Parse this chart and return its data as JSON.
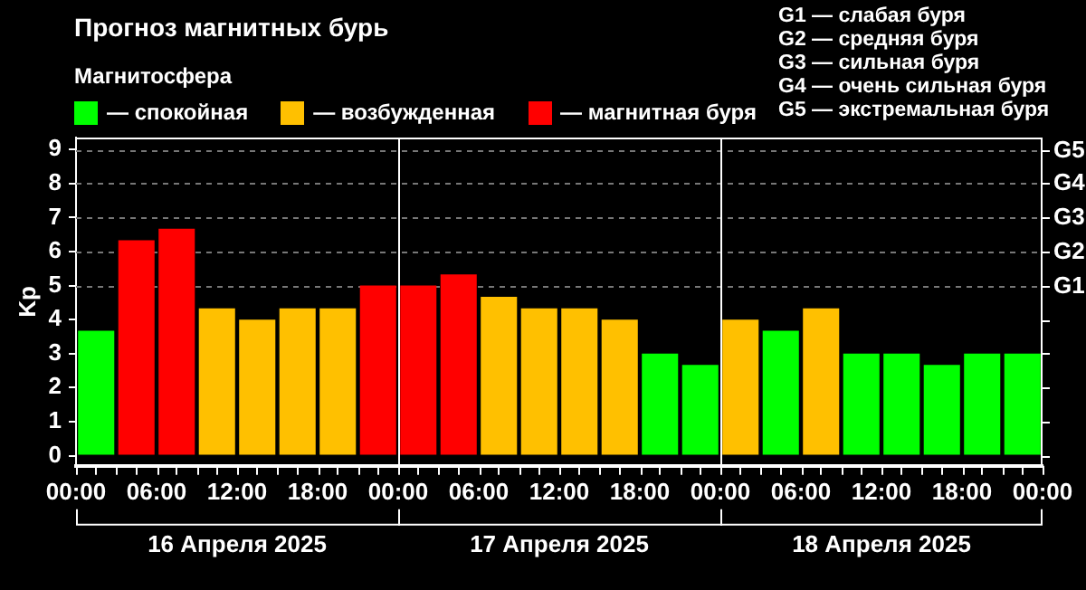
{
  "chart_data": {
    "type": "bar",
    "title": "Прогноз магнитных бурь",
    "ylabel": "Kp",
    "legend_title": "Магнитосфера",
    "legend": "top left",
    "x": [
      "2025-04-16T01:30",
      "2025-04-16T04:30",
      "2025-04-16T07:30",
      "2025-04-16T10:30",
      "2025-04-16T13:30",
      "2025-04-16T16:30",
      "2025-04-16T19:30",
      "2025-04-16T22:30",
      "2025-04-17T01:30",
      "2025-04-17T04:30",
      "2025-04-17T07:30",
      "2025-04-17T10:30",
      "2025-04-17T13:30",
      "2025-04-17T16:30",
      "2025-04-17T19:30",
      "2025-04-17T22:30",
      "2025-04-18T01:30",
      "2025-04-18T04:30",
      "2025-04-18T07:30",
      "2025-04-18T10:30",
      "2025-04-18T13:30",
      "2025-04-18T16:30",
      "2025-04-18T19:30",
      "2025-04-18T22:30"
    ],
    "series": [
      {
        "name": "— спокойная",
        "color": "#00ff00",
        "values": [
          3.67,
          null,
          null,
          null,
          null,
          null,
          null,
          null,
          null,
          null,
          null,
          null,
          null,
          null,
          3,
          2.67,
          null,
          3.67,
          null,
          3,
          3,
          2.67,
          3,
          3
        ]
      },
      {
        "name": "— возбужденная",
        "color": "#ffc000",
        "values": [
          null,
          null,
          null,
          4.33,
          4,
          4.33,
          4.33,
          null,
          null,
          null,
          4.67,
          4.33,
          4.33,
          4,
          null,
          null,
          4,
          null,
          4.33,
          null,
          null,
          null,
          null,
          null
        ]
      },
      {
        "name": "— магнитная буря",
        "color": "#ff0000",
        "values": [
          null,
          6.33,
          6.67,
          null,
          null,
          null,
          null,
          5,
          5,
          5.33,
          null,
          null,
          null,
          null,
          null,
          null,
          null,
          null,
          null,
          null,
          null,
          null,
          null,
          null
        ]
      }
    ],
    "xlim": [
      "2025-04-16T00:00",
      "2025-04-19T00:00"
    ],
    "xticks": [
      {
        "value": "2025-04-16T00:00",
        "label": "00:00"
      },
      {
        "value": "2025-04-16T03:00",
        "label": null
      },
      {
        "value": "2025-04-16T06:00",
        "label": "06:00"
      },
      {
        "value": "2025-04-16T09:00",
        "label": null
      },
      {
        "value": "2025-04-16T12:00",
        "label": "12:00"
      },
      {
        "value": "2025-04-16T15:00",
        "label": null
      },
      {
        "value": "2025-04-16T18:00",
        "label": "18:00"
      },
      {
        "value": "2025-04-16T21:00",
        "label": null
      },
      {
        "value": "2025-04-17T00:00",
        "label": "00:00"
      },
      {
        "value": "2025-04-17T03:00",
        "label": null
      },
      {
        "value": "2025-04-17T06:00",
        "label": "06:00"
      },
      {
        "value": "2025-04-17T09:00",
        "label": null
      },
      {
        "value": "2025-04-17T12:00",
        "label": "12:00"
      },
      {
        "value": "2025-04-17T15:00",
        "label": null
      },
      {
        "value": "2025-04-17T18:00",
        "label": "18:00"
      },
      {
        "value": "2025-04-17T21:00",
        "label": null
      },
      {
        "value": "2025-04-18T00:00",
        "label": "00:00"
      },
      {
        "value": "2025-04-18T03:00",
        "label": null
      },
      {
        "value": "2025-04-18T06:00",
        "label": "06:00"
      },
      {
        "value": "2025-04-18T09:00",
        "label": null
      },
      {
        "value": "2025-04-18T12:00",
        "label": "12:00"
      },
      {
        "value": "2025-04-18T15:00",
        "label": null
      },
      {
        "value": "2025-04-18T18:00",
        "label": "18:00"
      },
      {
        "value": "2025-04-18T21:00",
        "label": null
      },
      {
        "value": "2025-04-19T00:00",
        "label": "00:00"
      }
    ],
    "ylim": [
      -0.3,
      9.35
    ],
    "yticks": [
      0,
      1,
      2,
      3,
      4,
      5,
      6,
      7,
      8,
      9
    ],
    "ref_lines": [
      {
        "axis": "x",
        "value": "2025-04-17T00:00",
        "color": "#ffffff"
      },
      {
        "axis": "x",
        "value": "2025-04-18T00:00",
        "color": "#ffffff"
      },
      {
        "axis": "y",
        "value": 5,
        "label": "G1",
        "color": "#777777",
        "line_style": "dashed"
      },
      {
        "axis": "y",
        "value": 6,
        "label": "G2",
        "color": "#777777",
        "line_style": "dashed"
      },
      {
        "axis": "y",
        "value": 7,
        "label": "G3",
        "color": "#777777",
        "line_style": "dashed"
      },
      {
        "axis": "y",
        "value": 8,
        "label": "G4",
        "color": "#777777",
        "line_style": "dashed"
      },
      {
        "axis": "y",
        "value": 9,
        "label": "G5",
        "color": "#777777",
        "line_style": "dashed"
      }
    ],
    "annotations": [
      "16 Апреля 2025",
      "17 Апреля 2025",
      "18 Апреля 2025",
      "G1 — слабая буря",
      "G2 — средняя буря",
      "G3 — сильная буря",
      "G4 — очень сильная буря",
      "G5 — экстремальная буря"
    ]
  }
}
